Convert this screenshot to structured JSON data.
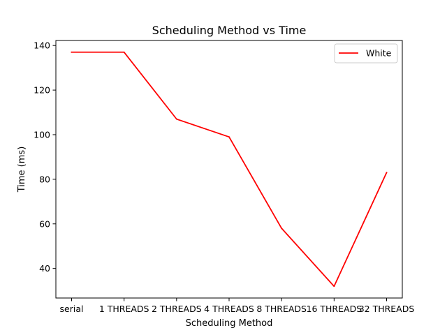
{
  "chart_data": {
    "type": "line",
    "title": "Scheduling Method vs Time",
    "xlabel": "Scheduling Method",
    "ylabel": "Time (ms)",
    "categories": [
      "serial",
      "1 THREADS",
      "2 THREADS",
      "4 THREADS",
      "8 THREADS",
      "16 THREADS",
      "32 THREADS"
    ],
    "series": [
      {
        "name": "White",
        "color": "#ff0000",
        "values": [
          137,
          137,
          107,
          99,
          58,
          32,
          83
        ]
      }
    ],
    "ylim": [
      26.75,
      142.25
    ],
    "yticks": [
      40,
      60,
      80,
      100,
      120,
      140
    ],
    "grid": false,
    "legend": "upper right"
  }
}
